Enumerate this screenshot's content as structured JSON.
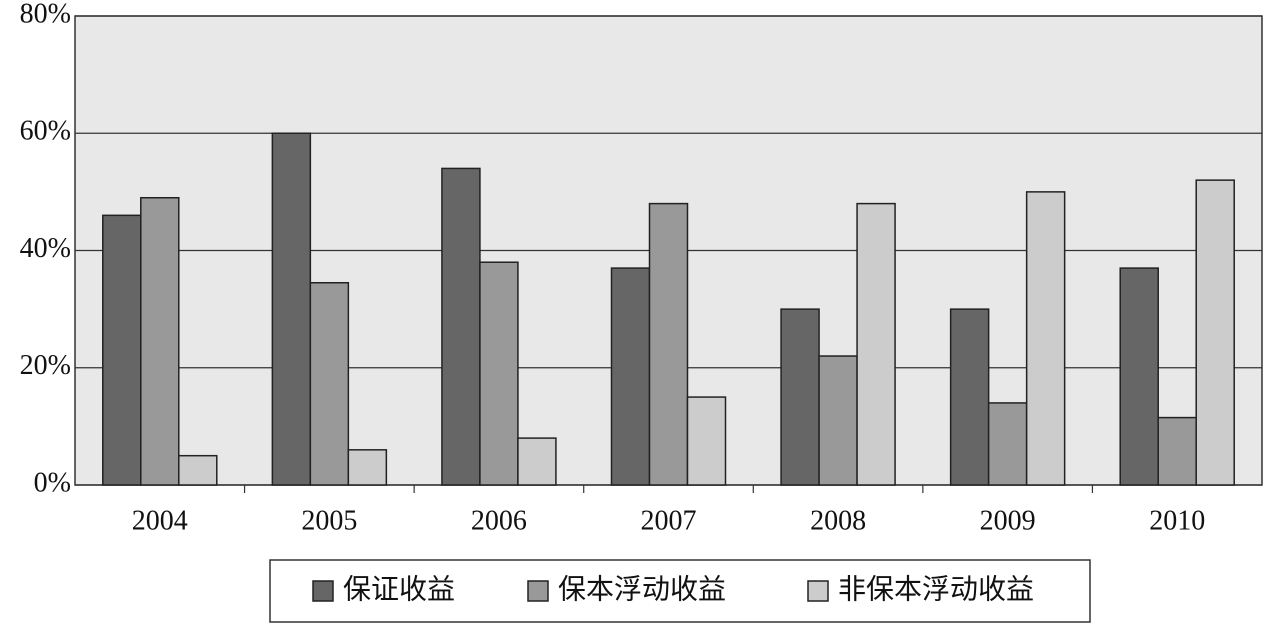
{
  "chart_data": {
    "type": "bar",
    "categories": [
      "2004",
      "2005",
      "2006",
      "2007",
      "2008",
      "2009",
      "2010"
    ],
    "series": [
      {
        "name": "保证收益",
        "color": "#666666",
        "values": [
          46,
          60,
          54,
          37,
          30,
          30,
          37
        ]
      },
      {
        "name": "保本浮动收益",
        "color": "#999999",
        "values": [
          49,
          34.5,
          38,
          48,
          22,
          14,
          11.5
        ]
      },
      {
        "name": "非保本浮动收益",
        "color": "#cccccc",
        "values": [
          5,
          6,
          8,
          15,
          48,
          50,
          52
        ]
      }
    ],
    "ylim": [
      0,
      80
    ],
    "yticks": [
      {
        "value": 0,
        "label": "0%"
      },
      {
        "value": 20,
        "label": "20%"
      },
      {
        "value": 40,
        "label": "40%"
      },
      {
        "value": 60,
        "label": "60%"
      },
      {
        "value": 80,
        "label": "80%"
      }
    ],
    "grid": true,
    "legend": "bottom"
  }
}
